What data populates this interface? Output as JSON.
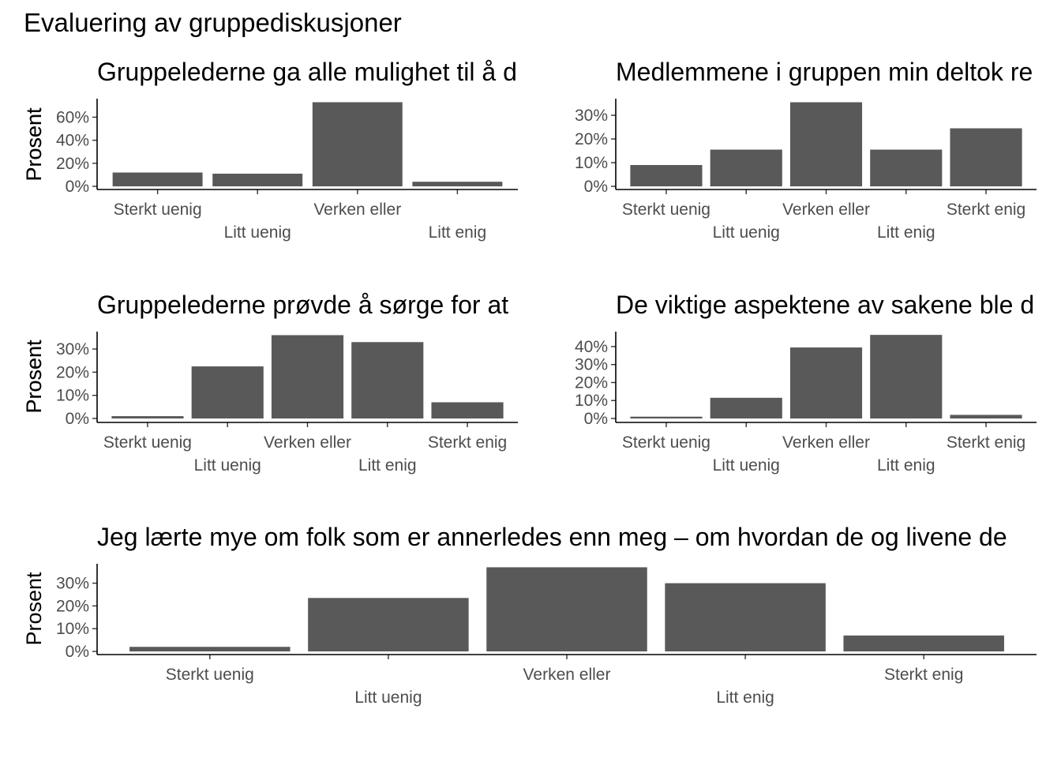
{
  "title": "Evaluering av gruppediskusjoner",
  "chart_data": [
    {
      "type": "bar",
      "title": "Gruppelederne ga alle mulighet til å d",
      "ylabel": "Prosent",
      "categories": [
        "Sterkt uenig",
        "Litt uenig",
        "Verken eller",
        "Litt enig"
      ],
      "values": [
        0.12,
        0.11,
        0.73,
        0.04
      ],
      "ylim": [
        0,
        0.74
      ],
      "yticks": [
        0,
        0.2,
        0.4,
        0.6
      ],
      "ytick_labels": [
        "0%",
        "20%",
        "40%",
        "60%"
      ],
      "grid": false
    },
    {
      "type": "bar",
      "title": "Medlemmene i gruppen min deltok re",
      "ylabel": "Prosent",
      "categories": [
        "Sterkt uenig",
        "Litt uenig",
        "Verken eller",
        "Litt enig",
        "Sterkt enig"
      ],
      "values": [
        0.09,
        0.155,
        0.355,
        0.155,
        0.245
      ],
      "ylim": [
        0,
        0.36
      ],
      "yticks": [
        0,
        0.1,
        0.2,
        0.3
      ],
      "ytick_labels": [
        "0%",
        "10%",
        "20%",
        "30%"
      ],
      "grid": false
    },
    {
      "type": "bar",
      "title": "Gruppelederne prøvde å sørge for at",
      "ylabel": "Prosent",
      "categories": [
        "Sterkt uenig",
        "Litt uenig",
        "Verken eller",
        "Litt enig",
        "Sterkt enig"
      ],
      "values": [
        0.01,
        0.225,
        0.36,
        0.33,
        0.07
      ],
      "ylim": [
        0,
        0.365
      ],
      "yticks": [
        0,
        0.1,
        0.2,
        0.3
      ],
      "ytick_labels": [
        "0%",
        "10%",
        "20%",
        "30%"
      ],
      "grid": false
    },
    {
      "type": "bar",
      "title": "De viktige aspektene av sakene ble d",
      "ylabel": "Prosent",
      "categories": [
        "Sterkt uenig",
        "Litt uenig",
        "Verken eller",
        "Litt enig",
        "Sterkt enig"
      ],
      "values": [
        0.01,
        0.115,
        0.395,
        0.465,
        0.02
      ],
      "ylim": [
        0,
        0.47
      ],
      "yticks": [
        0,
        0.1,
        0.2,
        0.3,
        0.4
      ],
      "ytick_labels": [
        "0%",
        "10%",
        "20%",
        "30%",
        "40%"
      ],
      "grid": false
    },
    {
      "type": "bar",
      "title": "Jeg lærte mye om folk som er annerledes enn meg – om hvordan de og livene de",
      "ylabel": "Prosent",
      "categories": [
        "Sterkt uenig",
        "Litt uenig",
        "Verken eller",
        "Litt enig",
        "Sterkt enig"
      ],
      "values": [
        0.02,
        0.235,
        0.37,
        0.3,
        0.07
      ],
      "ylim": [
        0,
        0.375
      ],
      "yticks": [
        0,
        0.1,
        0.2,
        0.3
      ],
      "ytick_labels": [
        "0%",
        "10%",
        "20%",
        "30%"
      ],
      "grid": false
    }
  ]
}
